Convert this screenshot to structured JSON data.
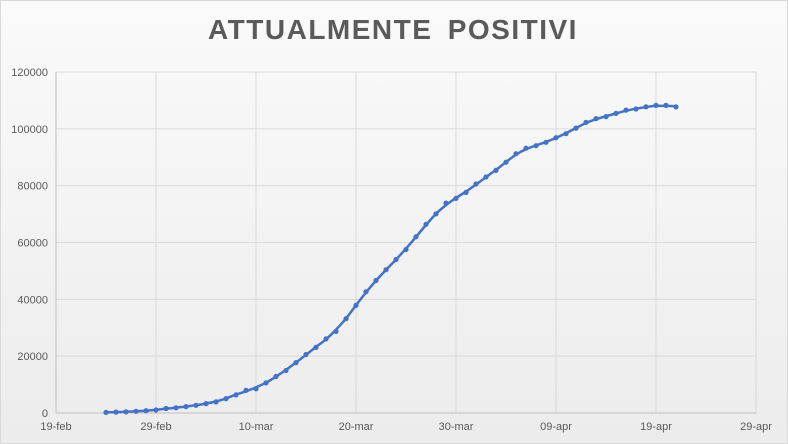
{
  "chart_data": {
    "type": "line",
    "title": "ATTUALMENTE POSITIVI",
    "xlabel": "",
    "ylabel": "",
    "x_ticks": [
      "19-feb",
      "29-feb",
      "10-mar",
      "20-mar",
      "30-mar",
      "09-apr",
      "19-apr",
      "29-apr"
    ],
    "y_ticks": [
      "0",
      "20000",
      "40000",
      "60000",
      "80000",
      "100000",
      "120000"
    ],
    "xlim": [
      "2020-02-19",
      "2020-04-29"
    ],
    "ylim": [
      0,
      120000
    ],
    "grid": "vertical and horizontal",
    "legend": "none",
    "colors": {
      "series": "#4472c4",
      "grid": "#d9d9d9",
      "axis_text": "#595959",
      "title": "#5a5a5a"
    },
    "series": [
      {
        "x": [
          "2020-02-24",
          "2020-02-25",
          "2020-02-26",
          "2020-02-27",
          "2020-02-28",
          "2020-02-29",
          "2020-03-01",
          "2020-03-02",
          "2020-03-03",
          "2020-03-04",
          "2020-03-05",
          "2020-03-06",
          "2020-03-07",
          "2020-03-08",
          "2020-03-09",
          "2020-03-10",
          "2020-03-11",
          "2020-03-12",
          "2020-03-13",
          "2020-03-14",
          "2020-03-15",
          "2020-03-16",
          "2020-03-17",
          "2020-03-18",
          "2020-03-19",
          "2020-03-20",
          "2020-03-21",
          "2020-03-22",
          "2020-03-23",
          "2020-03-24",
          "2020-03-25",
          "2020-03-26",
          "2020-03-27",
          "2020-03-28",
          "2020-03-29",
          "2020-03-30",
          "2020-03-31",
          "2020-04-01",
          "2020-04-02",
          "2020-04-03",
          "2020-04-04",
          "2020-04-05",
          "2020-04-06",
          "2020-04-07",
          "2020-04-08",
          "2020-04-09",
          "2020-04-10",
          "2020-04-11",
          "2020-04-12",
          "2020-04-13",
          "2020-04-14",
          "2020-04-15",
          "2020-04-16",
          "2020-04-17",
          "2020-04-18",
          "2020-04-19",
          "2020-04-20",
          "2020-04-21"
        ],
        "values": [
          221,
          311,
          385,
          588,
          821,
          1049,
          1577,
          1835,
          2263,
          2706,
          3296,
          3916,
          5061,
          6387,
          7985,
          8514,
          10590,
          12839,
          14955,
          17750,
          20603,
          23073,
          26062,
          28710,
          33190,
          37860,
          42681,
          46638,
          50418,
          54030,
          57521,
          62013,
          66414,
          70065,
          73880,
          75528,
          77635,
          80572,
          83049,
          85388,
          88274,
          91246,
          93187,
          94067,
          95262,
          96877,
          98273,
          100269,
          102253,
          103616,
          104291,
          105418,
          106607,
          106962,
          107771,
          108257,
          108237,
          107709
        ]
      }
    ]
  }
}
